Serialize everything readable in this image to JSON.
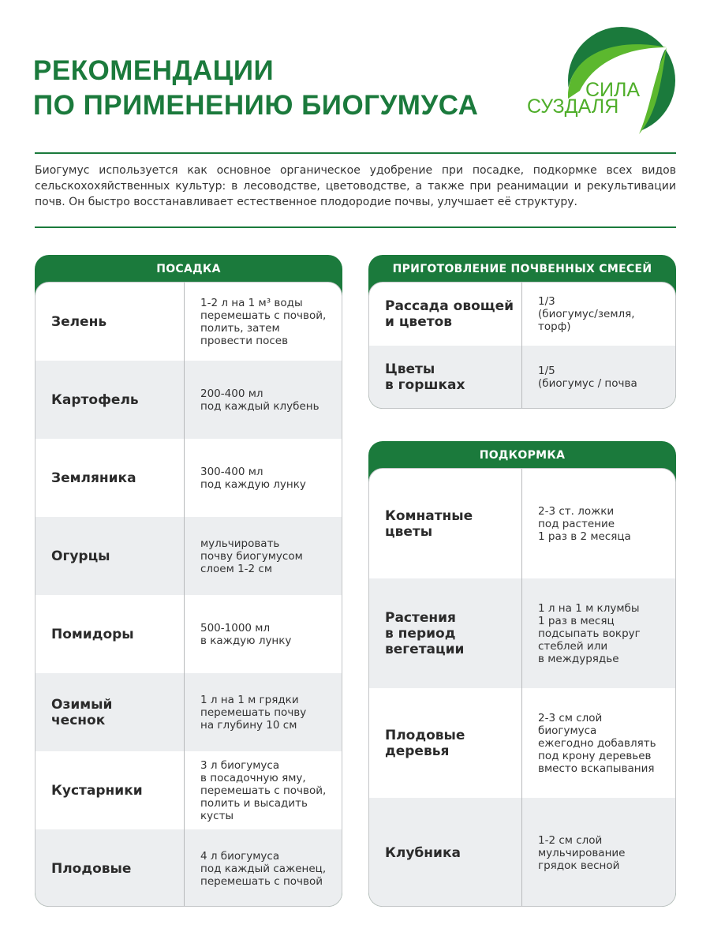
{
  "title": {
    "line1": "РЕКОМЕНДАЦИИ",
    "line2": "ПО ПРИМЕНЕНИЮ БИОГУМУСА"
  },
  "logo": {
    "line1": "СИЛА",
    "line2": "СУЗДАЛЯ"
  },
  "intro": "Биогумус используется как основное органическое удобрение при посадке, подкормке всех видов сельскохохяйственных культур: в лесоводстве, цветоводстве, а также при реанимации и рекультивации почв. Он быстро восстанавливает естественное плодородие почвы, улучшает её структуру.",
  "colors": {
    "brand_green": "#1b7a3c",
    "light_green": "#5cb82e",
    "row_alt": "#eceef0"
  },
  "planting": {
    "header": "ПОСАДКА",
    "rows": [
      {
        "label": "Зелень",
        "value": "1-2 л на 1 м³ воды\nперемешать с почвой,\nполить, затем\nпровести посев"
      },
      {
        "label": "Картофель",
        "value": "200-400 мл\nпод каждый клубень"
      },
      {
        "label": "Земляника",
        "value": "300-400 мл\nпод каждую лунку"
      },
      {
        "label": "Огурцы",
        "value": "мульчировать\nпочву биогумусом\nслоем 1-2 см"
      },
      {
        "label": "Помидоры",
        "value": "500-1000 мл\nв каждую лунку"
      },
      {
        "label": "Озимый\nчеснок",
        "value": "1 л на 1 м грядки\nперемешать почву\nна глубину 10 см"
      },
      {
        "label": "Кустарники",
        "value": "3 л биогумуса\nв посадочную яму,\nперемешать с почвой,\nполить и высадить\nкусты"
      },
      {
        "label": "Плодовые",
        "value": "4 л биогумуса\nпод каждый саженец,\nперемешать с почвой"
      }
    ]
  },
  "mixes": {
    "header": "ПРИГОТОВЛЕНИЕ ПОЧВЕННЫХ СМЕСЕЙ",
    "rows": [
      {
        "label": "Рассада овощей\nи цветов",
        "value": "1/3\n(биогумус/земля,\nторф)"
      },
      {
        "label": "Цветы\nв горшках",
        "value": "1/5\n(биогумус / почва"
      }
    ]
  },
  "feeding": {
    "header": "ПОДКОРМКА",
    "rows": [
      {
        "label": "Комнатные\nцветы",
        "value": "2-3 ст. ложки\nпод растение\n1 раз в 2 месяца"
      },
      {
        "label": "Растения\nв период\nвегетации",
        "value": "1 л на 1 м клумбы\n1 раз в месяц\nподсыпать вокруг\nстеблей или\nв междурядье"
      },
      {
        "label": "Плодовые\nдеревья",
        "value": "2-3 см слой\nбиогумуса\nежегодно добавлять\nпод крону деревьев\nвместо вскапывания"
      },
      {
        "label": "Клубника",
        "value": "1-2 см слой\nмульчирование\nгрядок весной"
      }
    ]
  }
}
